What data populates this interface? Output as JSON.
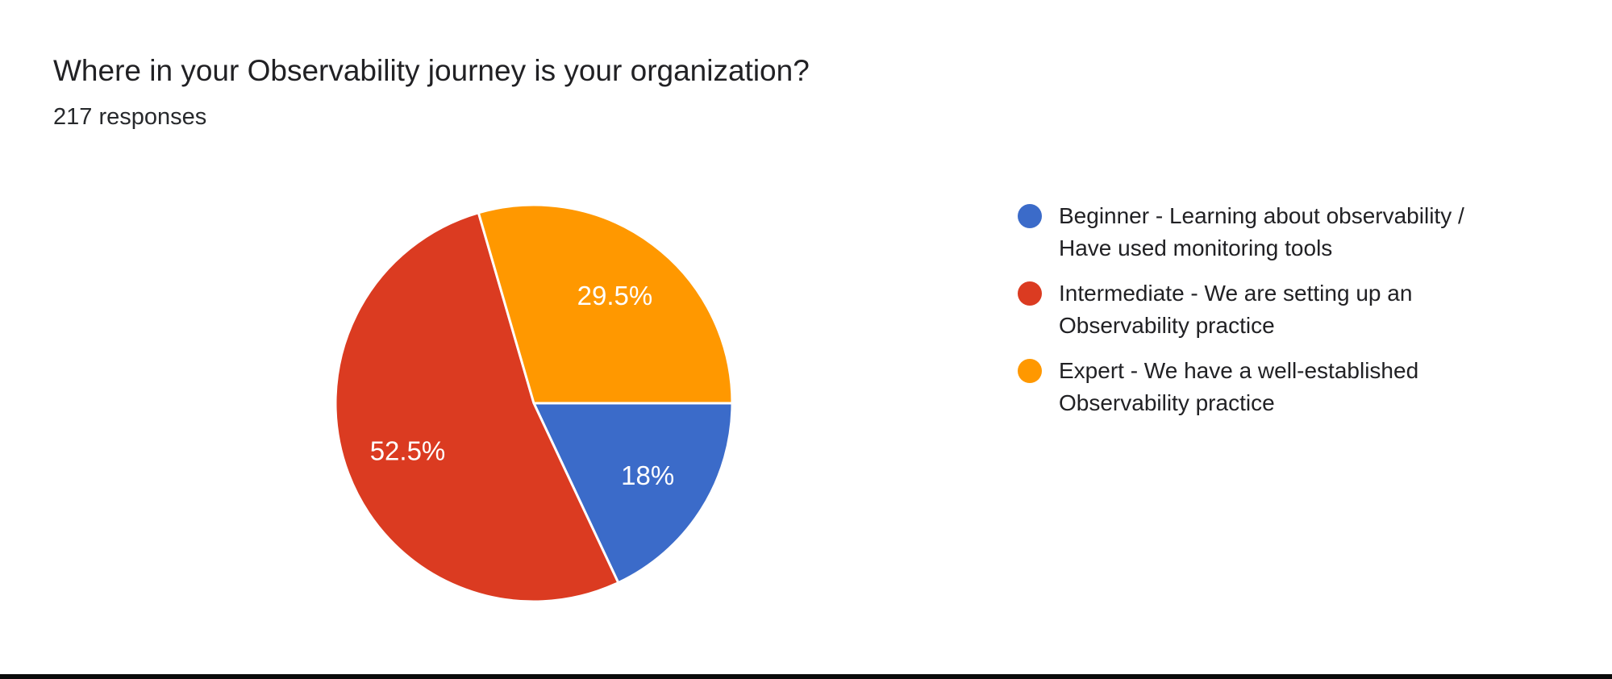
{
  "header": {
    "title": "Where in your Observability journey is your organization?",
    "subtitle": "217 responses",
    "response_count": 217
  },
  "colors": {
    "background": "#ffffff",
    "title_text": "#212124",
    "slice_label_text": "#ffffff",
    "slice_border": "#ffffff",
    "bottom_edge_bar": "#0a0a0a"
  },
  "chart_data": {
    "type": "pie",
    "title": "Where in your Observability journey is your organization?",
    "subtitle": "217 responses",
    "total_responses": 217,
    "start_angle": "3-oclock",
    "direction": "clockwise",
    "legend_position": "right",
    "slices": [
      {
        "id": "beginner",
        "label": "Beginner - Learning about observability / Have used monitoring tools",
        "value": 18,
        "display": "18%",
        "color": "#3B6BC9"
      },
      {
        "id": "intermediate",
        "label": "Intermediate - We are setting up an Observability practice",
        "value": 52.5,
        "display": "52.5%",
        "color": "#DB3B21"
      },
      {
        "id": "expert",
        "label": "Expert - We have a well-established Observability practice",
        "value": 29.5,
        "display": "29.5%",
        "color": "#FF9800"
      }
    ]
  },
  "legend": {
    "items": [
      {
        "label": "Beginner - Learning about observability /\nHave used monitoring tools"
      },
      {
        "label": "Intermediate - We are setting up an\nObservability practice"
      },
      {
        "label": "Expert - We have a well-established\nObservability practice"
      }
    ]
  }
}
